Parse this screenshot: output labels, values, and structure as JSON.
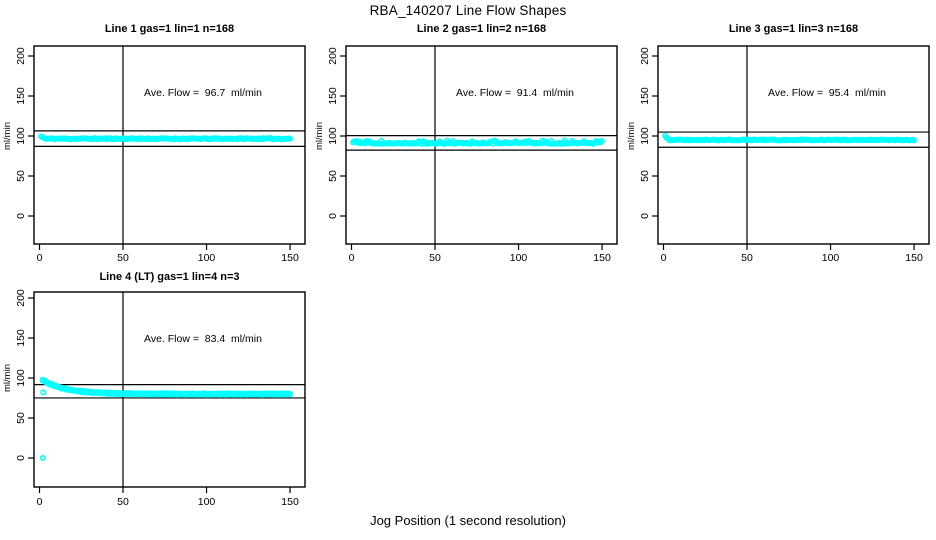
{
  "title": "RBA_140207  Line Flow Shapes",
  "xlabel": "Jog Position (1 second resolution)",
  "ylabel": "ml/min",
  "colors": {
    "points": "#00FFFF",
    "axis": "#000000",
    "background": "#FFFFFF",
    "text": "#000000"
  },
  "marker": {
    "shape": "open-circle",
    "radius": 2.2,
    "stroke_width": 1.6
  },
  "chart_data": [
    {
      "type": "scatter",
      "title": "Line 1 gas=1 lin=1 n=168",
      "annotation": "Ave. Flow =  96.7  ml/min",
      "ave_flow_ml_min": 96.7,
      "n_label": 168,
      "xlim": [
        0,
        150
      ],
      "ylim": [
        0,
        200
      ],
      "xticks": [
        "0",
        "50",
        "100",
        "150"
      ],
      "xtick_values": [
        0,
        50,
        100,
        150
      ],
      "yticks": [
        "0",
        "50",
        "100",
        "150",
        "200"
      ],
      "ytick_values": [
        0,
        50,
        100,
        150,
        200
      ],
      "vline_x": 50,
      "hlines": [
        106.4,
        87.0
      ],
      "series_profile": {
        "shape": "flat",
        "level": 96.6,
        "jitter": 0.75,
        "start": [
          99.4,
          98.3,
          97.6
        ],
        "x_start": 1,
        "x_end": 150,
        "n_points": 168,
        "seed": 11
      },
      "extra_points": [],
      "grid": {
        "row": 0,
        "col": 0
      }
    },
    {
      "type": "scatter",
      "title": "Line 2 gas=1 lin=2 n=168",
      "annotation": "Ave. Flow =  91.4  ml/min",
      "ave_flow_ml_min": 91.4,
      "n_label": 168,
      "xlim": [
        0,
        150
      ],
      "ylim": [
        0,
        200
      ],
      "xticks": [
        "0",
        "50",
        "100",
        "150"
      ],
      "xtick_values": [
        0,
        50,
        100,
        150
      ],
      "yticks": [
        "0",
        "50",
        "100",
        "150",
        "200"
      ],
      "ytick_values": [
        0,
        50,
        100,
        150,
        200
      ],
      "vline_x": 50,
      "hlines": [
        100.5,
        82.3
      ],
      "series_profile": {
        "shape": "flat",
        "level": 90.9,
        "jitter": 0.85,
        "start": [
          92.0
        ],
        "spike": {
          "prob": 0.22,
          "amp": 2.6
        },
        "x_start": 1,
        "x_end": 150,
        "n_points": 168,
        "seed": 77
      },
      "extra_points": [],
      "grid": {
        "row": 0,
        "col": 1
      }
    },
    {
      "type": "scatter",
      "title": "Line 3 gas=1 lin=3 n=168",
      "annotation": "Ave. Flow =  95.4  ml/min",
      "ave_flow_ml_min": 95.4,
      "n_label": 168,
      "xlim": [
        0,
        150
      ],
      "ylim": [
        0,
        200
      ],
      "xticks": [
        "0",
        "50",
        "100",
        "150"
      ],
      "xtick_values": [
        0,
        50,
        100,
        150
      ],
      "yticks": [
        "0",
        "50",
        "100",
        "150",
        "200"
      ],
      "ytick_values": [
        0,
        50,
        100,
        150,
        200
      ],
      "vline_x": 50,
      "hlines": [
        104.9,
        85.9
      ],
      "series_profile": {
        "shape": "flat",
        "level": 95.1,
        "jitter": 0.6,
        "start": [
          100.4,
          98.0,
          96.2
        ],
        "x_start": 1,
        "x_end": 150,
        "n_points": 168,
        "seed": 153
      },
      "extra_points": [],
      "grid": {
        "row": 0,
        "col": 2
      }
    },
    {
      "type": "scatter",
      "title": "Line 4 (LT) gas=1 lin=4 n=3",
      "annotation": "Ave. Flow =  83.4  ml/min",
      "ave_flow_ml_min": 83.4,
      "n_label": 3,
      "xlim": [
        0,
        150
      ],
      "ylim": [
        0,
        200
      ],
      "xticks": [
        "0",
        "50",
        "100",
        "150"
      ],
      "xtick_values": [
        0,
        50,
        100,
        150
      ],
      "yticks": [
        "0",
        "50",
        "100",
        "150",
        "200"
      ],
      "ytick_values": [
        0,
        50,
        100,
        150,
        200
      ],
      "vline_x": 50,
      "hlines": [
        91.7,
        75.1
      ],
      "series_profile": {
        "shape": "decay",
        "y_inf": 79.9,
        "amp": 17.3,
        "tau": 13.5,
        "jitter": 0.5,
        "passes": 3,
        "pass_offsets": [
          0.6,
          -0.4,
          0.1
        ],
        "x_start": 2,
        "x_end": 150,
        "n_points": 110,
        "seed": 229
      },
      "extra_points": [
        [
          2,
          0
        ],
        [
          2.3,
          82.0
        ]
      ],
      "grid": {
        "row": 1,
        "col": 0
      }
    }
  ]
}
